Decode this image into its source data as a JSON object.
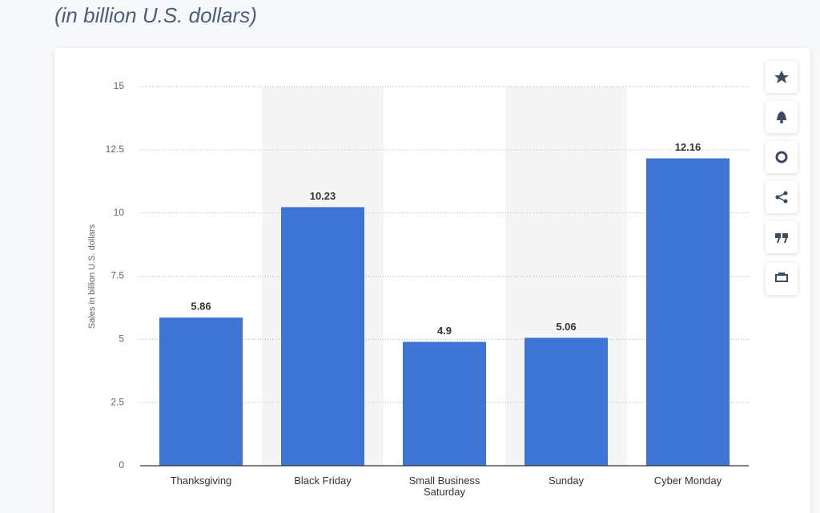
{
  "chart_data": {
    "type": "bar",
    "subtitle": "(in billion U.S. dollars)",
    "y_label": "Sales in billion U.S. dollars",
    "categories": [
      "Thanksgiving",
      "Black Friday",
      "Small Business Saturday",
      "Sunday",
      "Cyber Monday"
    ],
    "values": [
      5.86,
      10.23,
      4.9,
      5.06,
      12.16
    ],
    "color": "#3e74d6",
    "ylim": [
      0,
      15
    ],
    "yticks": [
      0,
      2.5,
      5,
      7.5,
      10,
      12.5,
      15
    ],
    "grid": true
  }
}
